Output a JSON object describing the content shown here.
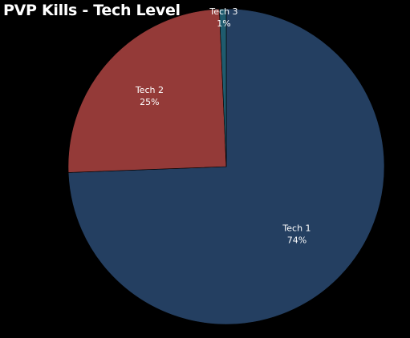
{
  "chart_data": {
    "type": "pie",
    "title": "PVP Kills - Tech Level",
    "categories": [
      "Tech 1",
      "Tech 2",
      "Tech 3"
    ],
    "values": [
      74.4,
      24.9,
      0.7
    ],
    "data_labels": [
      "74%",
      "25%",
      "1%"
    ],
    "colors": [
      "#243f61",
      "#943a38",
      "#1f5b6e"
    ],
    "legend": "none",
    "start_angle_deg": -90,
    "direction": "clockwise"
  }
}
